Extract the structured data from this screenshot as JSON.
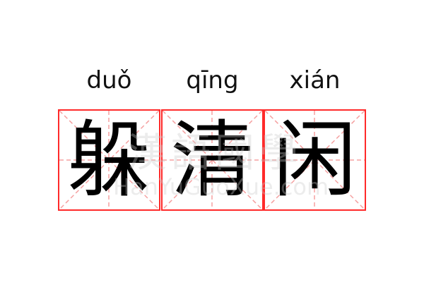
{
  "characters": [
    {
      "hanzi": "躲",
      "pinyin": "duǒ"
    },
    {
      "hanzi": "清",
      "pinyin": "qīng"
    },
    {
      "hanzi": "闲",
      "pinyin": "xián"
    }
  ],
  "watermark": {
    "logo": "漢語國學",
    "site": "HanYuGuoXue.com"
  },
  "colors": {
    "grid_border": "#ff2a2a",
    "guide_lines": "#f5a0a0"
  }
}
